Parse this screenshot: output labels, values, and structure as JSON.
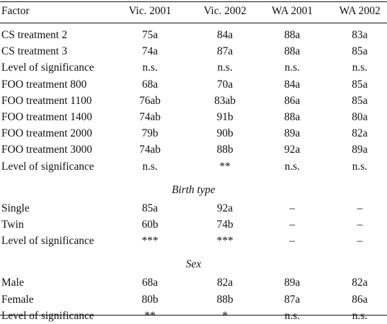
{
  "header": [
    "Factor",
    "Vic. 2001",
    "Vic. 2002",
    "WA 2001",
    "WA 2002"
  ],
  "groups": [
    {
      "title": "",
      "rows": [
        [
          "CS treatment 2",
          "75a",
          "84a",
          "88a",
          "83a"
        ],
        [
          "CS treatment 3",
          "74a",
          "87a",
          "88a",
          "85a"
        ],
        [
          "Level of significance",
          "n.s.",
          "n.s.",
          "n.s.",
          "n.s."
        ],
        [
          "FOO treatment 800",
          "68a",
          "70a",
          "84a",
          "85a"
        ],
        [
          "FOO treatment 1100",
          "76ab",
          "83ab",
          "86a",
          "85a"
        ],
        [
          "FOO treatment 1400",
          "74ab",
          "91b",
          "88a",
          "80a"
        ],
        [
          "FOO treatment 2000",
          "79b",
          "90b",
          "89a",
          "82a"
        ],
        [
          "FOO treatment 3000",
          "74ab",
          "88b",
          "92a",
          "89a"
        ],
        [
          "Level of significance",
          "n.s.",
          "**",
          "n.s.",
          "n.s."
        ]
      ]
    },
    {
      "title": "Birth type",
      "rows": [
        [
          "Single",
          "85a",
          "92a",
          "–",
          "–"
        ],
        [
          "Twin",
          "60b",
          "74b",
          "–",
          "–"
        ],
        [
          "Level of significance",
          "***",
          "***",
          "–",
          "–"
        ]
      ]
    },
    {
      "title": "Sex",
      "rows": [
        [
          "Male",
          "68a",
          "82a",
          "89a",
          "82a"
        ],
        [
          "Female",
          "80b",
          "88b",
          "87a",
          "86a"
        ],
        [
          "Level of significance",
          "**",
          "*",
          "n.s.",
          "n.s."
        ]
      ]
    }
  ]
}
